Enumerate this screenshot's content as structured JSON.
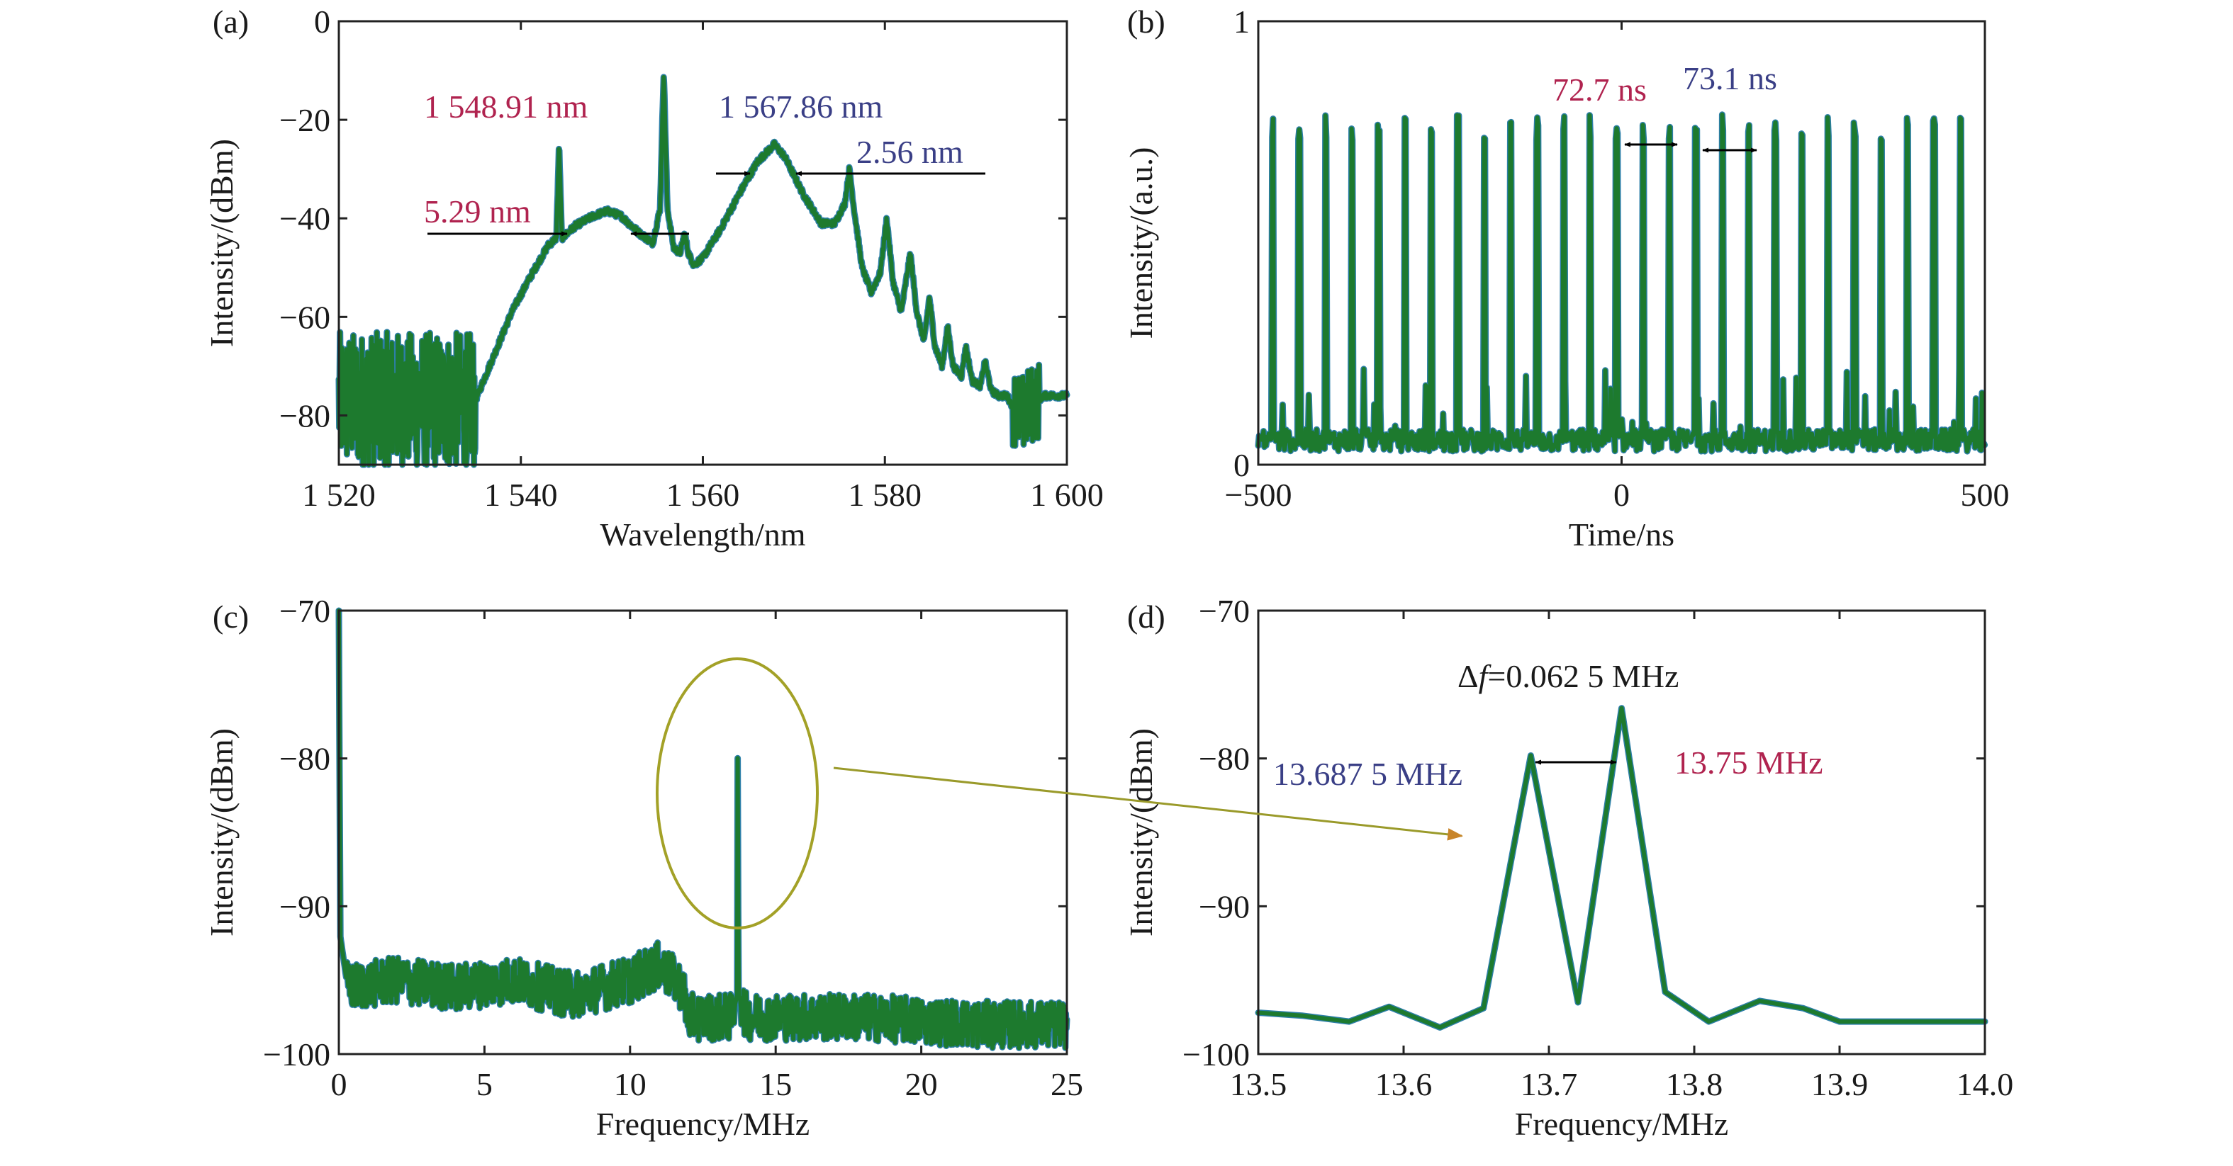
{
  "colors": {
    "trace": "#1d7a2e",
    "trace_edge": "#2d7fa8",
    "red_label": "#b0234f",
    "blue_label": "#3a3f86",
    "black_label": "#1a1a1a",
    "ellipse": "#a3a127",
    "pointer_arrow": "#9a9a2a"
  },
  "chart_data": [
    {
      "panel": "(a)",
      "type": "line",
      "xlabel": "Wavelength/nm",
      "ylabel": "Intensity/(dBm)",
      "xlim": [
        1520,
        1600
      ],
      "ylim": [
        -90,
        0
      ],
      "x_ticks": [
        1520,
        1540,
        1560,
        1580,
        1600
      ],
      "x_tick_labels": [
        "1 520",
        "1 540",
        "1 560",
        "1 580",
        "1 600"
      ],
      "y_ticks": [
        0,
        -20,
        -40,
        -60,
        -80
      ],
      "y_tick_labels": [
        "0",
        "-20",
        "-40",
        "-60",
        "-80"
      ],
      "series": [
        {
          "points": [
            [
              1520,
              -77
            ],
            [
              1535,
              -77
            ],
            [
              1537,
              -68
            ],
            [
              1539,
              -59
            ],
            [
              1541,
              -52
            ],
            [
              1543,
              -45.5
            ],
            [
              1543.9,
              -44
            ],
            [
              1544.2,
              -25
            ],
            [
              1544.5,
              -44
            ],
            [
              1546,
              -41.5
            ],
            [
              1548,
              -39.5
            ],
            [
              1549.5,
              -38.5
            ],
            [
              1551,
              -39.5
            ],
            [
              1553,
              -43
            ],
            [
              1554.5,
              -45
            ],
            [
              1555.3,
              -38
            ],
            [
              1555.7,
              -10
            ],
            [
              1556.1,
              -38
            ],
            [
              1556.8,
              -46
            ],
            [
              1557.5,
              -47
            ],
            [
              1558,
              -43
            ],
            [
              1558.4,
              -47
            ],
            [
              1559,
              -49.5
            ],
            [
              1560,
              -48
            ],
            [
              1562,
              -42
            ],
            [
              1564,
              -35
            ],
            [
              1566,
              -28.5
            ],
            [
              1567.86,
              -25
            ],
            [
              1569,
              -27.5
            ],
            [
              1571,
              -35
            ],
            [
              1573,
              -41
            ],
            [
              1574.5,
              -41
            ],
            [
              1575.6,
              -37
            ],
            [
              1576.1,
              -30
            ],
            [
              1576.6,
              -38
            ],
            [
              1577.5,
              -50
            ],
            [
              1578.5,
              -55
            ],
            [
              1579.5,
              -51
            ],
            [
              1580.2,
              -40
            ],
            [
              1580.9,
              -53
            ],
            [
              1581.8,
              -59
            ],
            [
              1582.8,
              -47
            ],
            [
              1583.5,
              -59
            ],
            [
              1584.3,
              -65
            ],
            [
              1584.9,
              -56
            ],
            [
              1585.5,
              -66
            ],
            [
              1586.3,
              -70
            ],
            [
              1586.9,
              -62
            ],
            [
              1587.5,
              -70
            ],
            [
              1588.4,
              -72
            ],
            [
              1588.9,
              -66
            ],
            [
              1589.6,
              -73
            ],
            [
              1590.5,
              -74
            ],
            [
              1591,
              -69
            ],
            [
              1591.7,
              -75
            ],
            [
              1592.5,
              -76
            ],
            [
              1593.4,
              -76
            ],
            [
              1594,
              -78
            ],
            [
              1595,
              -80
            ],
            [
              1596,
              -78
            ],
            [
              1597.5,
              -76
            ],
            [
              1600,
              -76
            ]
          ]
        }
      ],
      "annotations": [
        "1 548.91 nm",
        "1 567.86 nm",
        "5.29 nm",
        "2.56 nm"
      ]
    },
    {
      "panel": "(b)",
      "type": "line",
      "xlabel": "Time/ns",
      "ylabel": "Intensity/(a.u.)",
      "xlim": [
        -500,
        500
      ],
      "ylim": [
        0,
        1
      ],
      "x_ticks": [
        -500,
        0,
        500
      ],
      "x_tick_labels": [
        "-500",
        "0",
        "500"
      ],
      "y_ticks": [
        0,
        1
      ],
      "y_tick_labels": [
        "0",
        "1"
      ],
      "pulse_period_ns": 36.4,
      "pulse_peak": 0.76,
      "annotations": [
        "72.7 ns",
        "73.1 ns"
      ]
    },
    {
      "panel": "(c)",
      "type": "line",
      "xlabel": "Frequency/MHz",
      "ylabel": "Intensity/(dBm)",
      "xlim": [
        0,
        25
      ],
      "ylim": [
        -100,
        -70
      ],
      "x_ticks": [
        0,
        5,
        10,
        15,
        20,
        25
      ],
      "x_tick_labels": [
        "0",
        "5",
        "10",
        "15",
        "20",
        "25"
      ],
      "y_ticks": [
        -70,
        -80,
        -90,
        -100
      ],
      "y_tick_labels": [
        "-70",
        "-80",
        "-90",
        "-100"
      ],
      "series": [
        {
          "points": [
            [
              0,
              -70
            ],
            [
              0.05,
              -92
            ],
            [
              0.3,
              -95.5
            ],
            [
              2,
              -95
            ],
            [
              4,
              -95.5
            ],
            [
              6,
              -95
            ],
            [
              8,
              -96
            ],
            [
              10,
              -95
            ],
            [
              11,
              -94
            ],
            [
              11.8,
              -95.5
            ],
            [
              12,
              -97.5
            ],
            [
              13.5,
              -97.5
            ],
            [
              13.68,
              -96
            ],
            [
              13.7,
              -76.5
            ],
            [
              13.72,
              -96
            ],
            [
              14,
              -97.5
            ],
            [
              18,
              -97.5
            ],
            [
              22,
              -98
            ],
            [
              25,
              -98
            ]
          ]
        }
      ]
    },
    {
      "panel": "(d)",
      "type": "line",
      "xlabel": "Frequency/MHz",
      "ylabel": "Intensity/(dBm)",
      "xlim": [
        13.5,
        14.0
      ],
      "ylim": [
        -100,
        -70
      ],
      "x_ticks": [
        13.5,
        13.6,
        13.7,
        13.8,
        13.9,
        14.0
      ],
      "x_tick_labels": [
        "13.5",
        "13.6",
        "13.7",
        "13.8",
        "13.9",
        "14.0"
      ],
      "y_ticks": [
        -70,
        -80,
        -90,
        -100
      ],
      "y_tick_labels": [
        "-70",
        "-80",
        "-90",
        "-100"
      ],
      "series": [
        {
          "points": [
            [
              13.5,
              -97.2
            ],
            [
              13.53,
              -97.4
            ],
            [
              13.5625,
              -97.8
            ],
            [
              13.59,
              -96.8
            ],
            [
              13.625,
              -98.2
            ],
            [
              13.655,
              -96.9
            ],
            [
              13.6875,
              -79.8
            ],
            [
              13.72,
              -96.5
            ],
            [
              13.75,
              -76.6
            ],
            [
              13.78,
              -95.8
            ],
            [
              13.81,
              -97.8
            ],
            [
              13.845,
              -96.4
            ],
            [
              13.875,
              -96.9
            ],
            [
              13.9,
              -97.8
            ],
            [
              13.94,
              -97.8
            ],
            [
              14.0,
              -97.8
            ]
          ]
        }
      ],
      "annotations": [
        "Δf=0.062 5 MHz",
        "13.687 5 MHz",
        "13.75 MHz"
      ]
    }
  ],
  "labels": {
    "a_tag": "(a)",
    "b_tag": "(b)",
    "c_tag": "(c)",
    "d_tag": "(d)",
    "a_ann_peak_left": "1 548.91 nm",
    "a_ann_peak_right": "1 567.86 nm",
    "a_ann_width_left": "5.29 nm",
    "a_ann_width_right": "2.56 nm",
    "b_ann_period_1": "72.7 ns",
    "b_ann_period_2": "73.1 ns",
    "d_ann_delta_prefix": "Δ",
    "d_ann_delta_f": "f",
    "d_ann_delta_rest": "=0.062 5 MHz",
    "d_ann_left_freq": "13.687 5 MHz",
    "d_ann_right_freq": "13.75 MHz"
  }
}
